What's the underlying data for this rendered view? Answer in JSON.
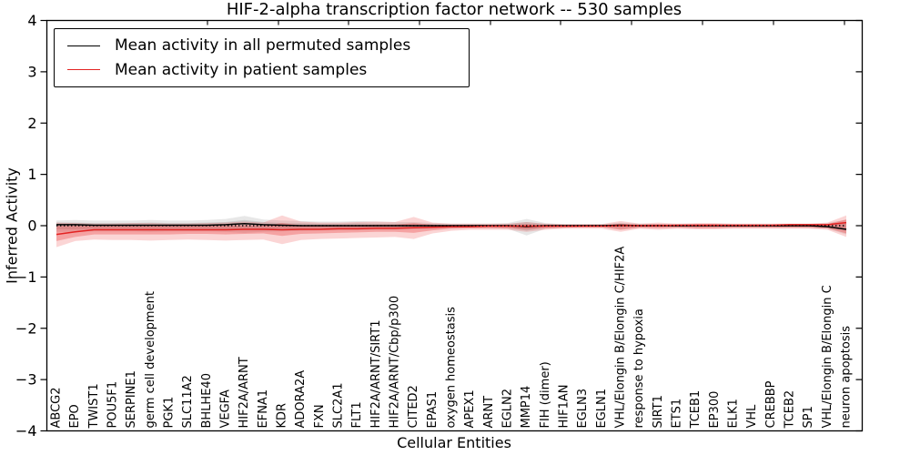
{
  "chart_data": {
    "type": "line",
    "title": "HIF-2-alpha transcription factor network -- 530 samples",
    "xlabel": "Cellular Entities",
    "ylabel": "Inferred Activity",
    "ylim": [
      -4,
      4
    ],
    "yticks": [
      4,
      3,
      2,
      1,
      0,
      -1,
      -2,
      -3,
      -4
    ],
    "ytick_labels": [
      "4",
      "3",
      "2",
      "1",
      "0",
      "−1",
      "−2",
      "−3",
      "−4"
    ],
    "grid": false,
    "legend_position": "upper-left",
    "categories": [
      "ABCG2",
      "EPO",
      "TWIST1",
      "POU5F1",
      "SERPINE1",
      "germ cell development",
      "PGK1",
      "SLC11A2",
      "BHLHE40",
      "VEGFA",
      "HIF2A/ARNT",
      "EFNA1",
      "KDR",
      "ADORA2A",
      "FXN",
      "SLC2A1",
      "FLT1",
      "HIF2A/ARNT/SIRT1",
      "HIF2A/ARNT/Cbp/p300",
      "CITED2",
      "EPAS1",
      "oxygen homeostasis",
      "APEX1",
      "ARNT",
      "EGLN2",
      "MMP14",
      "FIH (dimer)",
      "HIF1AN",
      "EGLN3",
      "EGLN1",
      "VHL/Elongin B/Elongin C/HIF2A",
      "response to hypoxia",
      "SIRT1",
      "ETS1",
      "TCEB1",
      "EP300",
      "ELK1",
      "VHL",
      "CREBBP",
      "TCEB2",
      "SP1",
      "VHL/Elongin B/Elongin C",
      "neuron apoptosis"
    ],
    "series": [
      {
        "name": "Mean activity in all permuted samples",
        "color": "#000000",
        "values": [
          0.02,
          0.02,
          0.01,
          0.01,
          0.01,
          0.01,
          0.01,
          0.01,
          0.01,
          0.02,
          0.04,
          0.02,
          0.01,
          0,
          0,
          0,
          0,
          0,
          0,
          0,
          0,
          0,
          0,
          0,
          0,
          -0.02,
          0,
          0,
          0,
          0,
          0.01,
          0,
          0,
          0,
          0,
          0,
          0,
          0,
          0,
          0,
          0,
          -0.02,
          -0.07
        ]
      },
      {
        "name": "Mean activity in patient samples",
        "color": "#e32322",
        "values": [
          -0.17,
          -0.12,
          -0.08,
          -0.08,
          -0.08,
          -0.08,
          -0.08,
          -0.08,
          -0.08,
          -0.08,
          -0.07,
          -0.07,
          -0.08,
          -0.07,
          -0.07,
          -0.06,
          -0.06,
          -0.05,
          -0.05,
          -0.04,
          -0.03,
          -0.02,
          -0.02,
          -0.01,
          -0.01,
          -0.01,
          -0.01,
          -0.01,
          -0.01,
          -0.01,
          0,
          0,
          0,
          0.01,
          0.01,
          0.01,
          0.01,
          0.01,
          0.01,
          0.02,
          0.02,
          0.02,
          0.06
        ]
      }
    ],
    "bands": [
      {
        "name": "permuted-outer",
        "color": "#909090",
        "opacity": 0.22,
        "upper": [
          0.1,
          0.11,
          0.1,
          0.1,
          0.1,
          0.11,
          0.1,
          0.1,
          0.11,
          0.13,
          0.19,
          0.12,
          0.1,
          0.09,
          0.08,
          0.08,
          0.09,
          0.08,
          0.07,
          0.07,
          0.05,
          0.04,
          0.04,
          0.04,
          0.05,
          0.13,
          0.05,
          0.03,
          0.03,
          0.03,
          0.06,
          0.04,
          0.03,
          0.03,
          0.03,
          0.03,
          0.03,
          0.03,
          0.03,
          0.03,
          0.03,
          0.05,
          0.12
        ],
        "lower": [
          -0.12,
          -0.12,
          -0.11,
          -0.11,
          -0.11,
          -0.12,
          -0.11,
          -0.11,
          -0.11,
          -0.12,
          -0.14,
          -0.12,
          -0.11,
          -0.1,
          -0.09,
          -0.09,
          -0.09,
          -0.08,
          -0.08,
          -0.07,
          -0.06,
          -0.05,
          -0.04,
          -0.04,
          -0.06,
          -0.19,
          -0.06,
          -0.04,
          -0.03,
          -0.03,
          -0.07,
          -0.04,
          -0.03,
          -0.03,
          -0.04,
          -0.03,
          -0.03,
          -0.03,
          -0.03,
          -0.03,
          -0.04,
          -0.06,
          -0.17
        ]
      },
      {
        "name": "permuted-inner",
        "color": "#808080",
        "opacity": 0.25,
        "upper": [
          0.06,
          0.06,
          0.05,
          0.05,
          0.05,
          0.06,
          0.05,
          0.05,
          0.06,
          0.07,
          0.11,
          0.07,
          0.05,
          0.05,
          0.04,
          0.04,
          0.05,
          0.04,
          0.04,
          0.04,
          0.03,
          0.02,
          0.02,
          0.02,
          0.03,
          0.07,
          0.03,
          0.02,
          0.02,
          0.02,
          0.03,
          0.02,
          0.02,
          0.02,
          0.02,
          0.02,
          0.02,
          0.02,
          0.02,
          0.02,
          0.02,
          0.03,
          0.07
        ],
        "lower": [
          -0.07,
          -0.07,
          -0.06,
          -0.06,
          -0.06,
          -0.07,
          -0.06,
          -0.06,
          -0.06,
          -0.07,
          -0.08,
          -0.07,
          -0.06,
          -0.06,
          -0.05,
          -0.05,
          -0.05,
          -0.05,
          -0.05,
          -0.04,
          -0.04,
          -0.03,
          -0.02,
          -0.02,
          -0.03,
          -0.1,
          -0.03,
          -0.02,
          -0.02,
          -0.02,
          -0.04,
          -0.02,
          -0.02,
          -0.02,
          -0.02,
          -0.02,
          -0.02,
          -0.02,
          -0.02,
          -0.02,
          -0.02,
          -0.03,
          -0.1
        ]
      },
      {
        "name": "patient-outer",
        "color": "#ef4040",
        "opacity": 0.22,
        "upper": [
          0.06,
          0.05,
          0.04,
          0.04,
          0.05,
          0.05,
          0.04,
          0.04,
          0.05,
          0.06,
          0.08,
          0.06,
          0.2,
          0.08,
          0.06,
          0.06,
          0.07,
          0.08,
          0.07,
          0.17,
          0.06,
          0.04,
          0.04,
          0.04,
          0.04,
          0.07,
          0.04,
          0.03,
          0.03,
          0.03,
          0.09,
          0.04,
          0.06,
          0.04,
          0.05,
          0.05,
          0.04,
          0.04,
          0.04,
          0.04,
          0.04,
          0.06,
          0.2
        ],
        "lower": [
          -0.42,
          -0.3,
          -0.27,
          -0.28,
          -0.28,
          -0.29,
          -0.28,
          -0.27,
          -0.28,
          -0.29,
          -0.28,
          -0.27,
          -0.36,
          -0.28,
          -0.26,
          -0.25,
          -0.24,
          -0.23,
          -0.22,
          -0.26,
          -0.15,
          -0.1,
          -0.08,
          -0.08,
          -0.08,
          -0.12,
          -0.08,
          -0.06,
          -0.06,
          -0.06,
          -0.12,
          -0.06,
          -0.08,
          -0.06,
          -0.07,
          -0.07,
          -0.06,
          -0.06,
          -0.06,
          -0.06,
          -0.06,
          -0.08,
          -0.22
        ]
      },
      {
        "name": "patient-inner",
        "color": "#e83030",
        "opacity": 0.3,
        "upper": [
          0,
          0,
          0,
          0,
          0,
          0,
          0,
          0,
          0,
          0,
          0.01,
          0,
          0.05,
          0.01,
          0,
          0.01,
          0.01,
          0.02,
          0.02,
          0.05,
          0.02,
          0.01,
          0.01,
          0.01,
          0.01,
          0.03,
          0.01,
          0.01,
          0.01,
          0.01,
          0.04,
          0.02,
          0.03,
          0.02,
          0.03,
          0.03,
          0.02,
          0.02,
          0.02,
          0.02,
          0.02,
          0.03,
          0.12
        ],
        "lower": [
          -0.3,
          -0.22,
          -0.17,
          -0.17,
          -0.17,
          -0.17,
          -0.17,
          -0.16,
          -0.16,
          -0.17,
          -0.16,
          -0.15,
          -0.2,
          -0.16,
          -0.15,
          -0.14,
          -0.13,
          -0.12,
          -0.12,
          -0.14,
          -0.09,
          -0.06,
          -0.05,
          -0.05,
          -0.05,
          -0.07,
          -0.05,
          -0.04,
          -0.03,
          -0.03,
          -0.08,
          -0.04,
          -0.05,
          -0.04,
          -0.05,
          -0.05,
          -0.04,
          -0.04,
          -0.04,
          -0.04,
          -0.04,
          -0.05,
          -0.15
        ]
      }
    ],
    "zero_line": {
      "style": "dotted",
      "color": "#000000",
      "y": 0
    }
  }
}
